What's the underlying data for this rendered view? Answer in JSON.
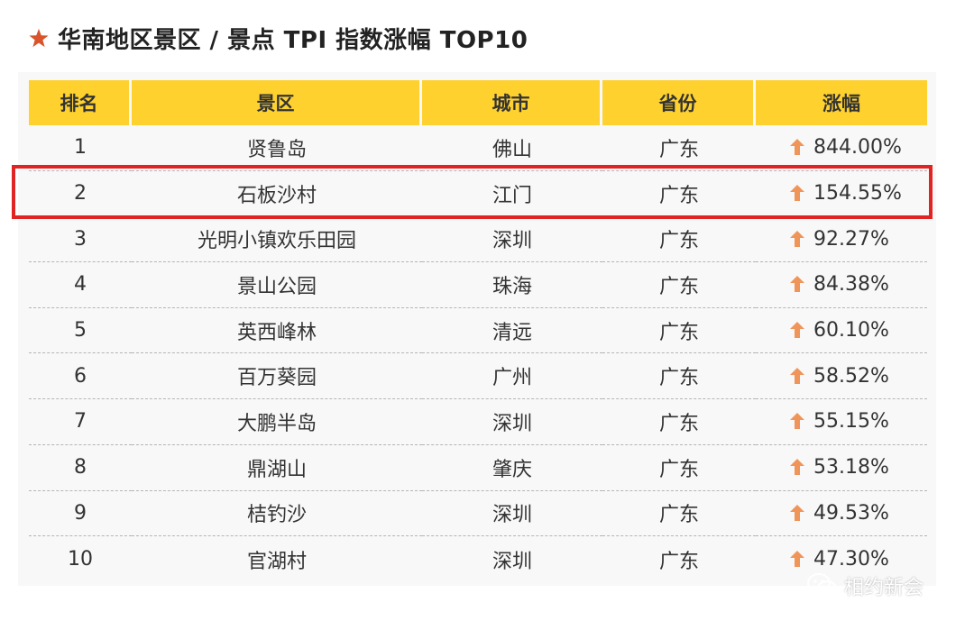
{
  "header": {
    "title": "华南地区景区 / 景点 TPI 指数涨幅 TOP10",
    "icon": "star-icon",
    "accent_color": "#d9532b"
  },
  "table": {
    "header_bg": "#fed12f",
    "columns": [
      "排名",
      "景区",
      "城市",
      "省份",
      "涨幅"
    ],
    "rows": [
      {
        "rank": "1",
        "spot": "贤鲁岛",
        "city": "佛山",
        "province": "广东",
        "growth": "844.00%"
      },
      {
        "rank": "2",
        "spot": "石板沙村",
        "city": "江门",
        "province": "广东",
        "growth": "154.55%"
      },
      {
        "rank": "3",
        "spot": "光明小镇欢乐田园",
        "city": "深圳",
        "province": "广东",
        "growth": "92.27%"
      },
      {
        "rank": "4",
        "spot": "景山公园",
        "city": "珠海",
        "province": "广东",
        "growth": "84.38%"
      },
      {
        "rank": "5",
        "spot": "英西峰林",
        "city": "清远",
        "province": "广东",
        "growth": "60.10%"
      },
      {
        "rank": "6",
        "spot": "百万葵园",
        "city": "广州",
        "province": "广东",
        "growth": "58.52%"
      },
      {
        "rank": "7",
        "spot": "大鹏半岛",
        "city": "深圳",
        "province": "广东",
        "growth": "55.15%"
      },
      {
        "rank": "8",
        "spot": "鼎湖山",
        "city": "肇庆",
        "province": "广东",
        "growth": "53.18%"
      },
      {
        "rank": "9",
        "spot": "桔钓沙",
        "city": "深圳",
        "province": "广东",
        "growth": "49.53%"
      },
      {
        "rank": "10",
        "spot": "官湖村",
        "city": "深圳",
        "province": "广东",
        "growth": "47.30%"
      }
    ],
    "growth_icon": "up-arrow-icon",
    "growth_icon_color": "#f0955a",
    "highlighted_row_rank": "2",
    "highlight_color": "#e02424"
  },
  "watermark": {
    "text": "相约新会",
    "icon": "wechat-icon"
  }
}
